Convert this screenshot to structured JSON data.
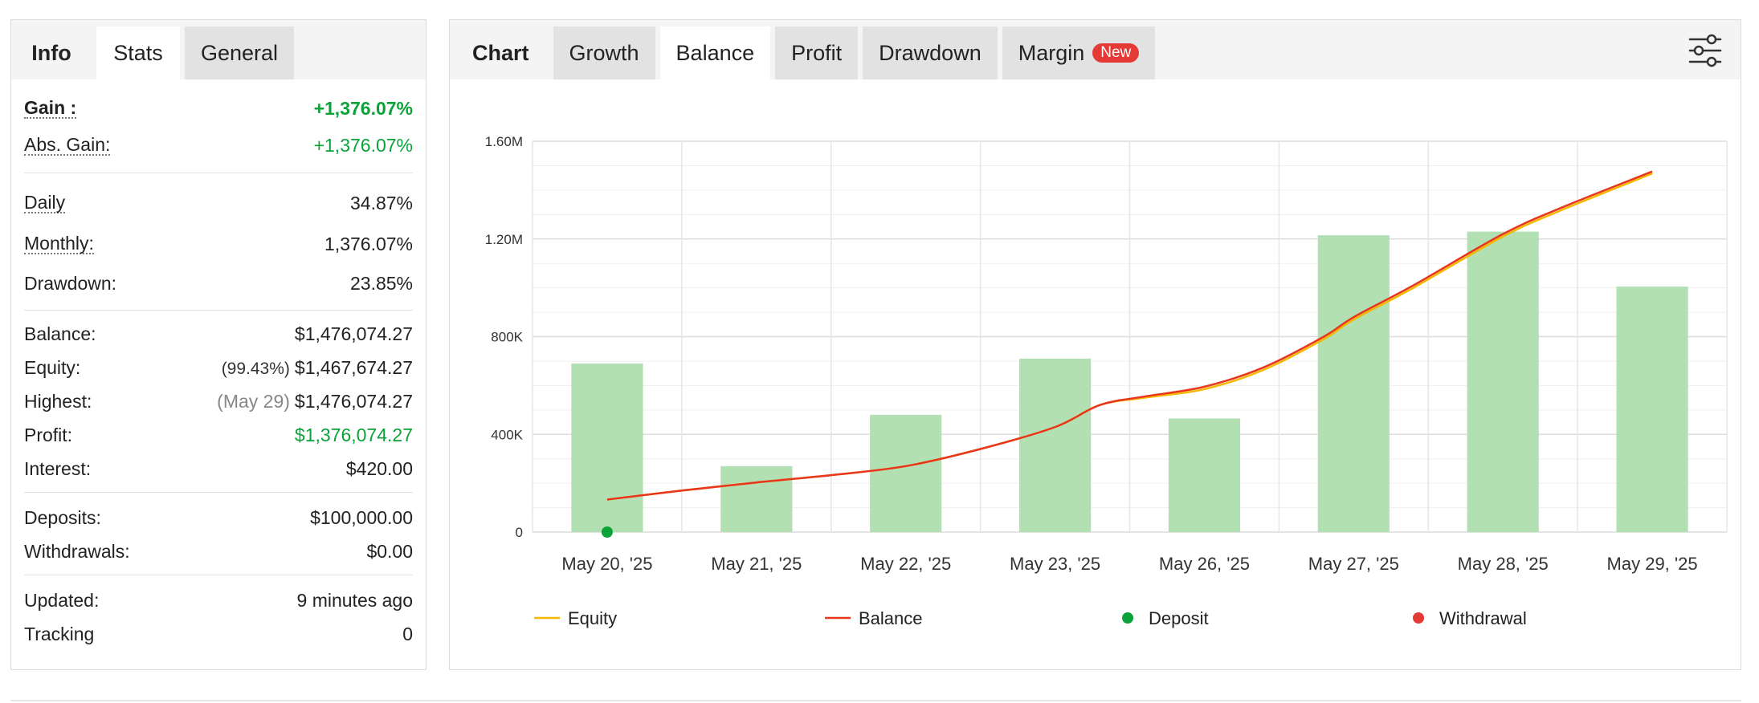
{
  "stats_panel": {
    "tabs": [
      {
        "label": "Info",
        "active": false,
        "is_label": true
      },
      {
        "label": "Stats",
        "active": true,
        "is_label": false
      },
      {
        "label": "General",
        "active": false,
        "is_label": false
      }
    ],
    "gain": {
      "label": "Gain :",
      "value": "+1,376.07%"
    },
    "abs_gain": {
      "label": "Abs. Gain:",
      "value": "+1,376.07%"
    },
    "daily": {
      "label": "Daily",
      "value": "34.87%"
    },
    "monthly": {
      "label": "Monthly:",
      "value": "1,376.07%"
    },
    "drawdown": {
      "label": "Drawdown:",
      "value": "23.85%"
    },
    "balance": {
      "label": "Balance:",
      "value": "$1,476,074.27"
    },
    "equity": {
      "label": "Equity:",
      "pct": "(99.43%)",
      "value": "$1,467,674.27"
    },
    "highest": {
      "label": "Highest:",
      "date": "(May 29)",
      "value": "$1,476,074.27"
    },
    "profit": {
      "label": "Profit:",
      "value": "$1,376,074.27"
    },
    "interest": {
      "label": "Interest:",
      "value": "$420.00"
    },
    "deposits": {
      "label": "Deposits:",
      "value": "$100,000.00"
    },
    "withdrawals": {
      "label": "Withdrawals:",
      "value": "$0.00"
    },
    "updated": {
      "label": "Updated:",
      "value": "9 minutes ago"
    },
    "tracking": {
      "label": "Tracking",
      "value": "0"
    }
  },
  "chart_panel": {
    "label": "Chart",
    "tabs": [
      {
        "label": "Growth",
        "active": false
      },
      {
        "label": "Balance",
        "active": true
      },
      {
        "label": "Profit",
        "active": false
      },
      {
        "label": "Drawdown",
        "active": false
      },
      {
        "label": "Margin",
        "active": false,
        "badge": "New"
      }
    ],
    "settings_icon": "sliders-icon"
  },
  "colors": {
    "bar": "#b3e0b3",
    "equity": "#f5b800",
    "balance": "#e8361e",
    "deposit": "#0aa33a",
    "withdrawal": "#e53935",
    "gain_green": "#0aa33a",
    "badge_red": "#e53935"
  },
  "chart_data": {
    "type": "bar",
    "categories": [
      "May 20, '25",
      "May 21, '25",
      "May 22, '25",
      "May 23, '25",
      "May 26, '25",
      "May 27, '25",
      "May 28, '25",
      "May 29, '25"
    ],
    "y_ticks": [
      {
        "value": 0,
        "label": "0"
      },
      {
        "value": 400000,
        "label": "400K"
      },
      {
        "value": 800000,
        "label": "800K"
      },
      {
        "value": 1200000,
        "label": "1.20M"
      },
      {
        "value": 1600000,
        "label": "1.60M"
      }
    ],
    "ylim": [
      0,
      1600000
    ],
    "bars": [
      690000,
      270000,
      480000,
      710000,
      465000,
      1215000,
      1230000,
      1005000
    ],
    "series": [
      {
        "name": "Equity",
        "kind": "line",
        "color": "#f5b800",
        "points": [
          [
            0,
            133000
          ],
          [
            0.5,
            170000
          ],
          [
            1,
            203000
          ],
          [
            1.5,
            233000
          ],
          [
            2,
            270000
          ],
          [
            2.5,
            340000
          ],
          [
            3,
            430000
          ],
          [
            3.3,
            520000
          ],
          [
            3.6,
            550000
          ],
          [
            4,
            585000
          ],
          [
            4.4,
            665000
          ],
          [
            4.8,
            790000
          ],
          [
            5,
            870000
          ],
          [
            5.4,
            1000000
          ],
          [
            6,
            1210000
          ],
          [
            6.4,
            1320000
          ],
          [
            7,
            1467674
          ]
        ]
      },
      {
        "name": "Balance",
        "kind": "line",
        "color": "#e8361e",
        "points": [
          [
            0,
            133000
          ],
          [
            0.5,
            170000
          ],
          [
            1,
            203000
          ],
          [
            1.5,
            233000
          ],
          [
            2,
            270000
          ],
          [
            2.5,
            340000
          ],
          [
            3,
            430000
          ],
          [
            3.3,
            520000
          ],
          [
            3.6,
            555000
          ],
          [
            4,
            595000
          ],
          [
            4.4,
            675000
          ],
          [
            4.8,
            800000
          ],
          [
            5,
            880000
          ],
          [
            5.4,
            1010000
          ],
          [
            6,
            1220000
          ],
          [
            6.4,
            1330000
          ],
          [
            7,
            1476074
          ]
        ]
      },
      {
        "name": "Deposit",
        "kind": "marker",
        "color": "#0aa33a",
        "points": [
          [
            0,
            0
          ]
        ]
      },
      {
        "name": "Withdrawal",
        "kind": "marker",
        "color": "#e53935",
        "points": []
      }
    ],
    "legend": [
      {
        "name": "Equity",
        "kind": "line",
        "color": "#f5b800"
      },
      {
        "name": "Balance",
        "kind": "line",
        "color": "#e8361e"
      },
      {
        "name": "Deposit",
        "kind": "dot",
        "color": "#0aa33a"
      },
      {
        "name": "Withdrawal",
        "kind": "dot",
        "color": "#e53935"
      }
    ],
    "legend_position": "bottom",
    "grid": true
  }
}
